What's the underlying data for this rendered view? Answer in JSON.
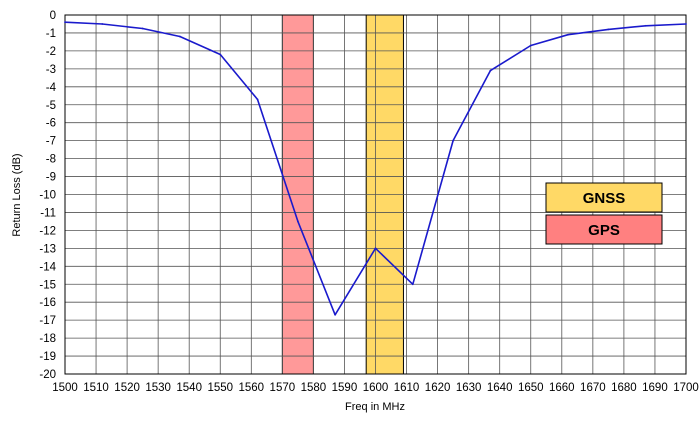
{
  "chart_data": {
    "type": "line",
    "title": "",
    "xlabel": "Freq in MHz",
    "ylabel": "Return Loss (dB)",
    "xlim": [
      1500,
      1700
    ],
    "ylim": [
      -20,
      0
    ],
    "x_ticks": [
      1500,
      1510,
      1520,
      1530,
      1540,
      1550,
      1560,
      1570,
      1580,
      1590,
      1600,
      1610,
      1620,
      1630,
      1640,
      1650,
      1660,
      1670,
      1680,
      1690,
      1700
    ],
    "y_ticks": [
      0,
      -1,
      -2,
      -3,
      -4,
      -5,
      -6,
      -7,
      -8,
      -9,
      -10,
      -11,
      -12,
      -13,
      -14,
      -15,
      -16,
      -17,
      -18,
      -19,
      -20
    ],
    "grid": true,
    "series": [
      {
        "color": "#1a1acc",
        "x": [
          1500,
          1512,
          1525,
          1537,
          1550,
          1562,
          1575,
          1587,
          1600,
          1612,
          1625,
          1637,
          1650,
          1662,
          1675,
          1687,
          1700
        ],
        "y": [
          -0.4,
          -0.5,
          -0.75,
          -1.2,
          -2.2,
          -4.7,
          -11.5,
          -16.7,
          -13.0,
          -15.0,
          -7.0,
          -3.1,
          -1.7,
          -1.1,
          -0.8,
          -0.6,
          -0.5
        ]
      }
    ],
    "bands": [
      {
        "name": "GPS",
        "x0": 1570,
        "x1": 1580,
        "color": "#ff9999"
      },
      {
        "name": "GNSS",
        "x0": 1597,
        "x1": 1609,
        "color": "#ffd966"
      }
    ],
    "legend": {
      "placement": "right",
      "entries": [
        {
          "label": "GNSS",
          "color": "#ffd966"
        },
        {
          "label": "GPS",
          "color": "#ff8080"
        }
      ]
    }
  }
}
